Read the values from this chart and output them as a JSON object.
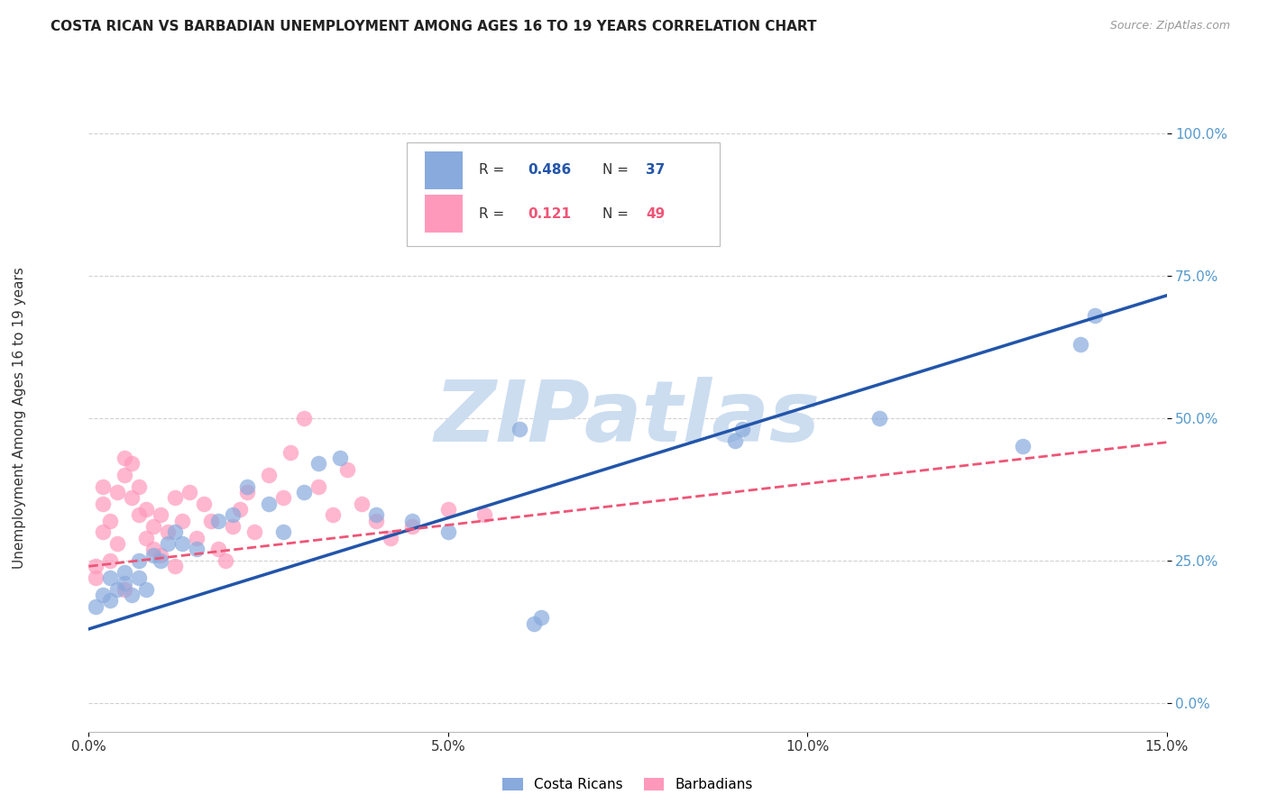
{
  "title": "COSTA RICAN VS BARBADIAN UNEMPLOYMENT AMONG AGES 16 TO 19 YEARS CORRELATION CHART",
  "source": "Source: ZipAtlas.com",
  "ylabel": "Unemployment Among Ages 16 to 19 years",
  "xlim": [
    0,
    0.15
  ],
  "ylim": [
    -0.05,
    1.05
  ],
  "xticks": [
    0.0,
    0.05,
    0.1,
    0.15
  ],
  "xtick_labels": [
    "0.0%",
    "5.0%",
    "10.0%",
    "15.0%"
  ],
  "yticks": [
    0.0,
    0.25,
    0.5,
    0.75,
    1.0
  ],
  "ytick_labels": [
    "0.0%",
    "25.0%",
    "50.0%",
    "75.0%",
    "100.0%"
  ],
  "blue_color": "#88AADD",
  "pink_color": "#FF99BB",
  "blue_line_color": "#2255AA",
  "pink_line_color": "#EE5577",
  "watermark": "ZIPatlas",
  "watermark_color": "#CCDDF0",
  "blue_r": "0.486",
  "blue_n": "37",
  "pink_r": "0.121",
  "pink_n": "49",
  "blue_intercept": 0.13,
  "blue_slope": 3.9,
  "pink_intercept": 0.24,
  "pink_slope": 1.45,
  "blue_x": [
    0.001,
    0.002,
    0.003,
    0.003,
    0.004,
    0.005,
    0.005,
    0.006,
    0.007,
    0.007,
    0.008,
    0.009,
    0.01,
    0.011,
    0.012,
    0.013,
    0.015,
    0.018,
    0.02,
    0.022,
    0.025,
    0.027,
    0.03,
    0.032,
    0.035,
    0.04,
    0.045,
    0.05,
    0.06,
    0.062,
    0.063,
    0.09,
    0.091,
    0.11,
    0.13,
    0.138,
    0.14
  ],
  "blue_y": [
    0.17,
    0.19,
    0.18,
    0.22,
    0.2,
    0.21,
    0.23,
    0.19,
    0.22,
    0.25,
    0.2,
    0.26,
    0.25,
    0.28,
    0.3,
    0.28,
    0.27,
    0.32,
    0.33,
    0.38,
    0.35,
    0.3,
    0.37,
    0.42,
    0.43,
    0.33,
    0.32,
    0.3,
    0.48,
    0.14,
    0.15,
    0.46,
    0.48,
    0.5,
    0.45,
    0.63,
    0.68
  ],
  "pink_x": [
    0.001,
    0.001,
    0.002,
    0.002,
    0.002,
    0.003,
    0.003,
    0.004,
    0.004,
    0.005,
    0.005,
    0.005,
    0.006,
    0.006,
    0.007,
    0.007,
    0.008,
    0.008,
    0.009,
    0.009,
    0.01,
    0.01,
    0.011,
    0.012,
    0.012,
    0.013,
    0.014,
    0.015,
    0.016,
    0.017,
    0.018,
    0.019,
    0.02,
    0.021,
    0.022,
    0.023,
    0.025,
    0.027,
    0.028,
    0.03,
    0.032,
    0.034,
    0.036,
    0.038,
    0.04,
    0.042,
    0.045,
    0.05,
    0.055
  ],
  "pink_y": [
    0.22,
    0.24,
    0.3,
    0.35,
    0.38,
    0.25,
    0.32,
    0.28,
    0.37,
    0.2,
    0.4,
    0.43,
    0.36,
    0.42,
    0.33,
    0.38,
    0.29,
    0.34,
    0.27,
    0.31,
    0.26,
    0.33,
    0.3,
    0.36,
    0.24,
    0.32,
    0.37,
    0.29,
    0.35,
    0.32,
    0.27,
    0.25,
    0.31,
    0.34,
    0.37,
    0.3,
    0.4,
    0.36,
    0.44,
    0.5,
    0.38,
    0.33,
    0.41,
    0.35,
    0.32,
    0.29,
    0.31,
    0.34,
    0.33
  ],
  "background_color": "#FFFFFF",
  "grid_color": "#CCCCCC",
  "title_color": "#222222",
  "source_color": "#999999",
  "ytick_color": "#5599CC",
  "xtick_color": "#333333",
  "ylabel_color": "#333333"
}
